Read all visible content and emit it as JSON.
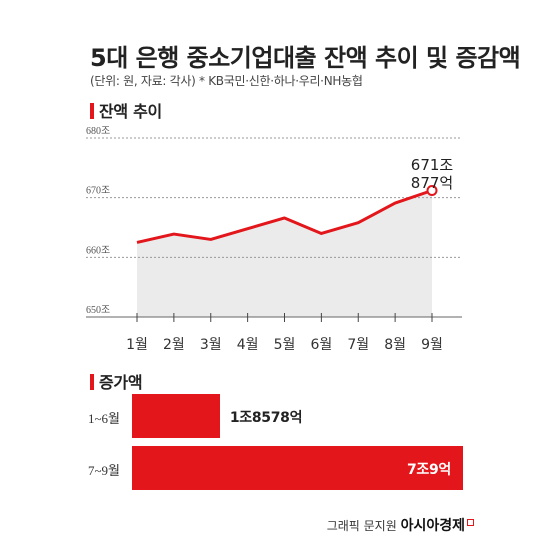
{
  "title": "5대 은행 중소기업대출 잔액 추이 및 증감액",
  "subtitle": "(단위: 원, 자료: 각사) * KB국민·신한·하나·우리·NH농협",
  "colors": {
    "accent": "#e3161b",
    "area": "#ebebeb",
    "grid": "#999999"
  },
  "chart_data": [
    {
      "type": "line",
      "section_title": "잔액 추이",
      "categories": [
        "1월",
        "2월",
        "3월",
        "4월",
        "5월",
        "6월",
        "7월",
        "8월",
        "9월"
      ],
      "y_tick_labels": [
        "680조",
        "670조",
        "660조",
        "650조"
      ],
      "ylim": [
        650,
        680
      ],
      "grid": true,
      "series": [
        {
          "values": [
            662.5,
            663.9,
            663.0,
            664.8,
            666.6,
            664.0,
            665.8,
            669.1,
            671.2
          ]
        }
      ],
      "annotation": {
        "index": 8,
        "line1": "671조",
        "line2": "877억"
      }
    },
    {
      "type": "bar",
      "orientation": "horizontal",
      "section_title": "증가액",
      "categories": [
        "1~6월",
        "7~9월"
      ],
      "values": [
        1.8578,
        7.0009
      ],
      "value_labels": [
        "1조8578억",
        "7조9억"
      ]
    }
  ],
  "credit": {
    "prefix": "그래픽 문지원",
    "brand": "아시아경제"
  }
}
